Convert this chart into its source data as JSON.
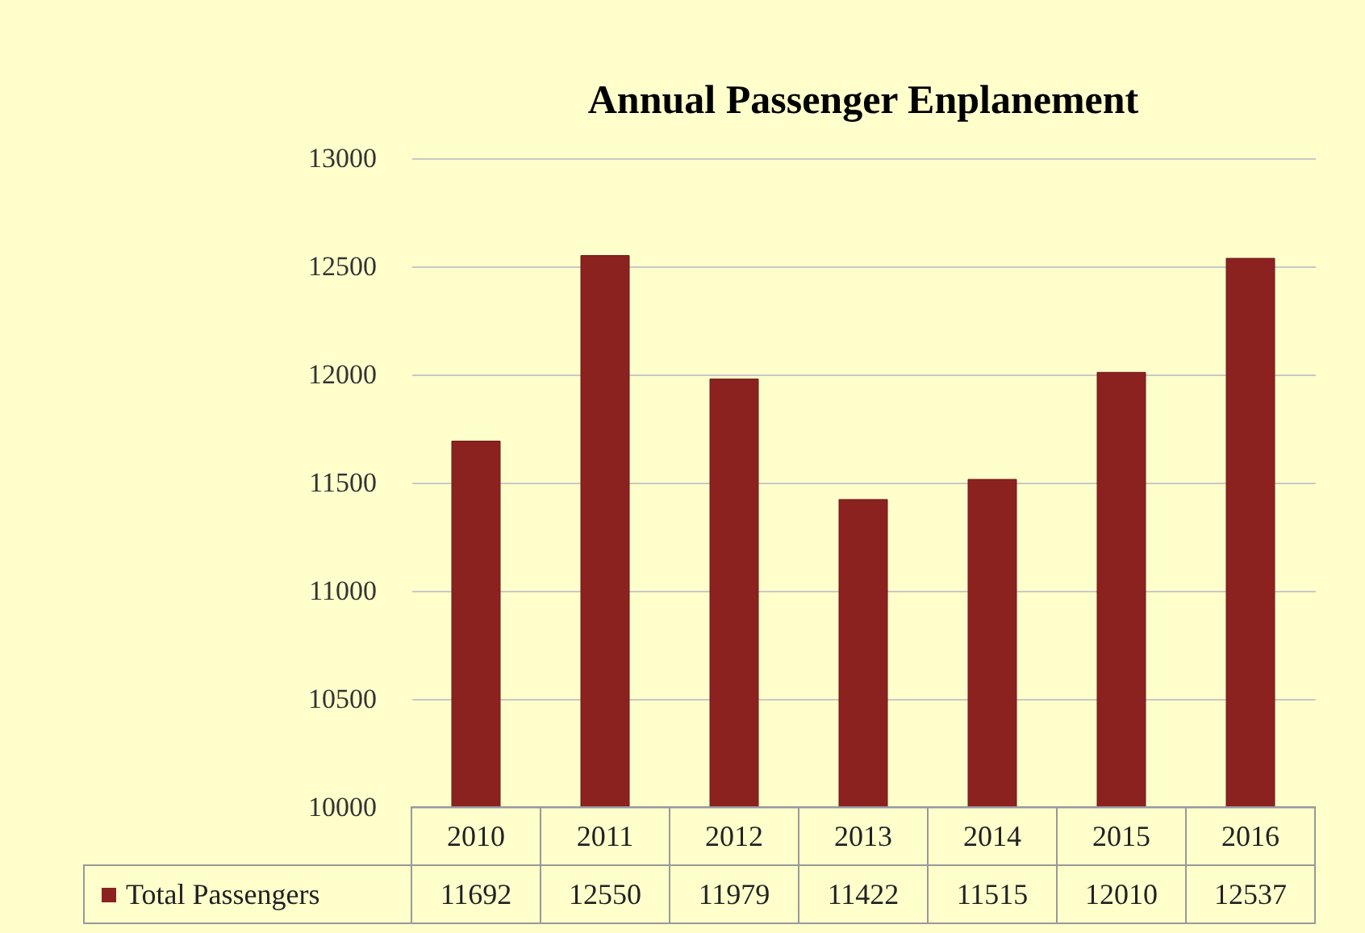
{
  "chart_data": {
    "type": "bar",
    "title": "Annual Passenger Enplanement",
    "categories": [
      "2010",
      "2011",
      "2012",
      "2013",
      "2014",
      "2015",
      "2016"
    ],
    "series": [
      {
        "name": "Total Passengers",
        "color": "#8b2220",
        "values": [
          11692,
          12550,
          11979,
          11422,
          11515,
          12010,
          12537
        ]
      }
    ],
    "ylim": [
      10000,
      13000
    ],
    "yticks": [
      10000,
      10500,
      11000,
      11500,
      12000,
      12500,
      13000
    ],
    "grid": "y",
    "legend": "bottom",
    "data_labels": true
  }
}
